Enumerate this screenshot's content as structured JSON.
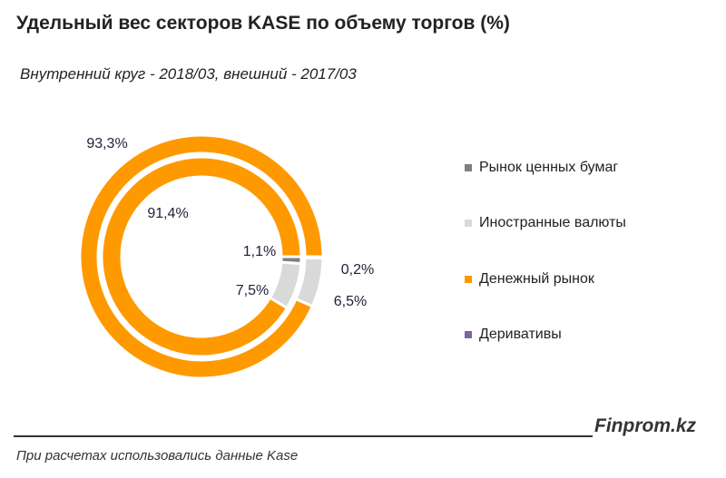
{
  "chart_data": {
    "type": "donut",
    "title": "Удельный вес секторов KASE по объему торгов (%)",
    "subtitle": "Внутренний круг - 2018/03, внешний - 2017/03",
    "categories": [
      "Рынок ценных бумаг",
      "Иностранные валюты",
      "Денежный рынок",
      "Деривативы"
    ],
    "colors": [
      "#7f7f7f",
      "#d9d9d9",
      "#ff9900",
      "#8064a2"
    ],
    "series": [
      {
        "ring": "inner",
        "values": [
          1.1,
          7.5,
          91.4,
          0
        ],
        "labels": [
          "1,1%",
          "7,5%",
          "91,4%",
          ""
        ]
      },
      {
        "ring": "outer",
        "values": [
          0.2,
          6.5,
          93.3,
          0
        ],
        "labels": [
          "0,2%",
          "6,5%",
          "93,3%",
          ""
        ]
      }
    ],
    "legend_position": "right"
  },
  "footer": {
    "brand": "Finprom.kz",
    "source": "При расчетах использовались данные Kase"
  }
}
